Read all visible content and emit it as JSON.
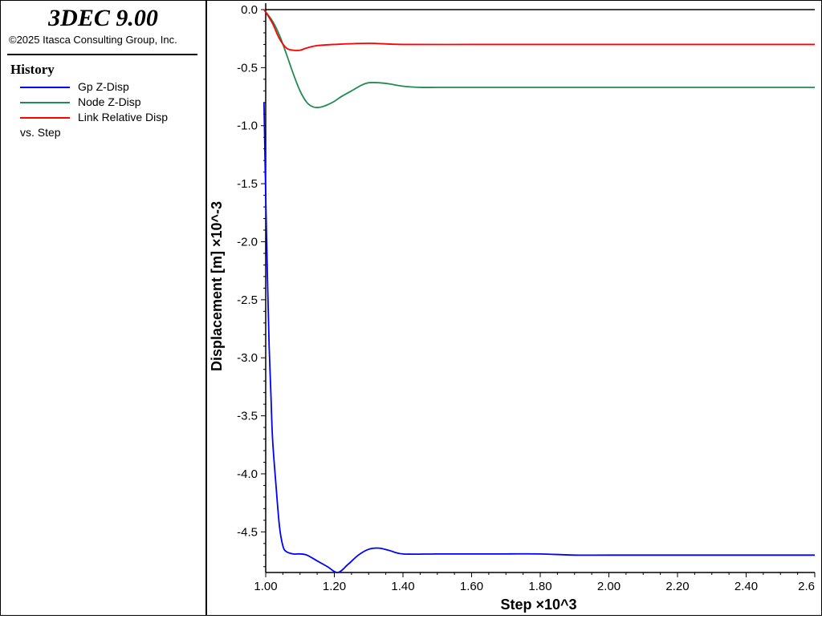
{
  "app": {
    "title": "3DEC 9.00",
    "copyright": "©2025 Itasca Consulting Group, Inc."
  },
  "legend": {
    "heading": "History",
    "items": [
      {
        "label": "Gp Z-Disp",
        "color": "#0000ff"
      },
      {
        "label": "Node Z-Disp",
        "color": "#228b50"
      },
      {
        "label": "Link Relative Disp",
        "color": "#ff0000"
      }
    ],
    "vs_label": "vs. Step"
  },
  "chart_data": {
    "type": "line",
    "title": "History",
    "xlabel": "Step ×10^3",
    "ylabel": "Displacement [m] ×10^-3",
    "xlim": [
      1.0,
      2.6
    ],
    "ylim": [
      -4.85,
      0.0
    ],
    "xticks": [
      "1.00",
      "1.20",
      "1.40",
      "1.60",
      "1.80",
      "2.00",
      "2.20",
      "2.40",
      "2.6"
    ],
    "yticks": [
      "0.0",
      "-0.5",
      "-1.0",
      "-1.5",
      "-2.0",
      "-2.5",
      "-3.0",
      "-3.5",
      "-4.0",
      "-4.5"
    ],
    "series": [
      {
        "name": "Gp Z-Disp",
        "color": "#0000ff",
        "x": [
          0.995,
          1.0,
          1.005,
          1.01,
          1.015,
          1.02,
          1.03,
          1.04,
          1.05,
          1.06,
          1.08,
          1.1,
          1.12,
          1.15,
          1.18,
          1.21,
          1.24,
          1.27,
          1.3,
          1.33,
          1.36,
          1.4,
          1.5,
          1.6,
          1.7,
          1.8,
          1.9,
          2.0,
          2.2,
          2.4,
          2.6
        ],
        "values": [
          -0.8,
          -1.6,
          -2.3,
          -2.9,
          -3.3,
          -3.7,
          -4.1,
          -4.45,
          -4.62,
          -4.67,
          -4.69,
          -4.69,
          -4.7,
          -4.75,
          -4.8,
          -4.85,
          -4.78,
          -4.7,
          -4.65,
          -4.64,
          -4.66,
          -4.69,
          -4.69,
          -4.69,
          -4.69,
          -4.69,
          -4.7,
          -4.7,
          -4.7,
          -4.7,
          -4.7
        ]
      },
      {
        "name": "Node Z-Disp",
        "color": "#228b50",
        "x": [
          0.995,
          1.0,
          1.02,
          1.04,
          1.06,
          1.08,
          1.1,
          1.12,
          1.14,
          1.16,
          1.18,
          1.2,
          1.22,
          1.25,
          1.28,
          1.3,
          1.33,
          1.36,
          1.4,
          1.45,
          1.5,
          1.6,
          1.8,
          2.0,
          2.2,
          2.4,
          2.6
        ],
        "values": [
          0.0,
          -0.02,
          -0.1,
          -0.22,
          -0.38,
          -0.55,
          -0.7,
          -0.8,
          -0.84,
          -0.84,
          -0.82,
          -0.79,
          -0.75,
          -0.7,
          -0.65,
          -0.63,
          -0.63,
          -0.64,
          -0.66,
          -0.67,
          -0.67,
          -0.67,
          -0.67,
          -0.67,
          -0.67,
          -0.67,
          -0.67
        ]
      },
      {
        "name": "Link Relative Disp",
        "color": "#ff0000",
        "x": [
          0.995,
          1.0,
          1.02,
          1.04,
          1.06,
          1.08,
          1.1,
          1.12,
          1.15,
          1.2,
          1.3,
          1.4,
          1.6,
          1.8,
          2.0,
          2.2,
          2.4,
          2.6
        ],
        "values": [
          0.0,
          -0.02,
          -0.12,
          -0.25,
          -0.33,
          -0.35,
          -0.35,
          -0.33,
          -0.31,
          -0.3,
          -0.29,
          -0.3,
          -0.3,
          -0.3,
          -0.3,
          -0.3,
          -0.3,
          -0.3
        ]
      }
    ],
    "grid": false,
    "legend_position": "left-panel",
    "zero_line": 0.0
  }
}
